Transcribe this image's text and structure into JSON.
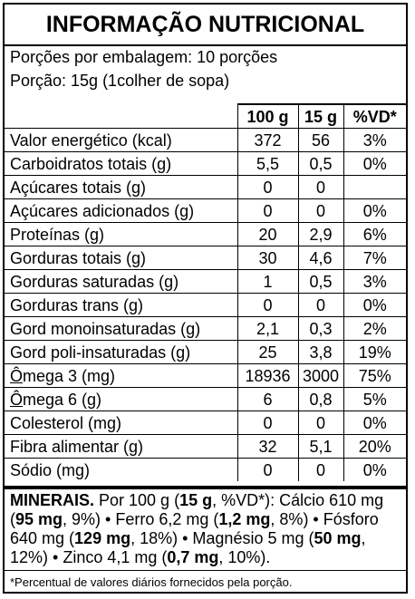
{
  "title": "INFORMAÇÃO NUTRICIONAL",
  "servings_per_package": "Porções por embalagem: 10 porções",
  "serving_size": "Porção: 15g (1colher de sopa)",
  "columns": [
    "100 g",
    "15 g",
    "%VD*"
  ],
  "rows": [
    {
      "name": "Valor energético (kcal)",
      "v100": "372",
      "v15": "56",
      "vd": "3%"
    },
    {
      "name": "Carboidratos totais (g)",
      "v100": "5,5",
      "v15": "0,5",
      "vd": "0%"
    },
    {
      "name": "Açúcares totais (g)",
      "v100": "0",
      "v15": "0",
      "vd": ""
    },
    {
      "name": "Açúcares adicionados (g)",
      "v100": "0",
      "v15": "0",
      "vd": "0%"
    },
    {
      "name": "Proteínas (g)",
      "v100": "20",
      "v15": "2,9",
      "vd": "6%"
    },
    {
      "name": "Gorduras totais (g)",
      "v100": "30",
      "v15": "4,6",
      "vd": "7%"
    },
    {
      "name": "Gorduras saturadas (g)",
      "v100": "1",
      "v15": "0,5",
      "vd": "3%"
    },
    {
      "name": "Gorduras trans (g)",
      "v100": "0",
      "v15": "0",
      "vd": "0%"
    },
    {
      "name": "Gord monoinsaturadas (g)",
      "v100": "2,1",
      "v15": "0,3",
      "vd": "2%"
    },
    {
      "name": "Gord poli-insaturadas (g)",
      "v100": "25",
      "v15": "3,8",
      "vd": "19%"
    },
    {
      "name_pre": "",
      "name_u": "Ô",
      "name_post": "mega 3 (mg)",
      "v100": "18936",
      "v15": "3000",
      "vd": "75%"
    },
    {
      "name_pre": "",
      "name_u": "Ô",
      "name_post": "mega 6 (g)",
      "v100": "6",
      "v15": "0,8",
      "vd": "5%"
    },
    {
      "name": "Colesterol (mg)",
      "v100": "0",
      "v15": "0",
      "vd": "0%"
    },
    {
      "name": "Fibra alimentar (g)",
      "v100": "32",
      "v15": "5,1",
      "vd": "20%"
    },
    {
      "name": "Sódio (mg)",
      "v100": "0",
      "v15": "0",
      "vd": "0%"
    }
  ],
  "minerals": {
    "heading": "MINERAIS.",
    "t1": " Por 100 g (",
    "b1": "15 g",
    "t2": ", %VD*): Cálcio 610 mg (",
    "b2": "95 mg",
    "t3": ", 9%) • Ferro 6,2 mg (",
    "b3": "1,2 mg",
    "t4": ", 8%) • Fósforo 640 mg (",
    "b4": "129 mg",
    "t5": ", 18%) • Magnésio 5 mg (",
    "b5": "50 mg",
    "t6": ", 12%) • Zinco 4,1 mg (",
    "b6": "0,7 mg",
    "t7": ", 10%)."
  },
  "footnote": "*Percentual de valores diários fornecidos pela porção."
}
